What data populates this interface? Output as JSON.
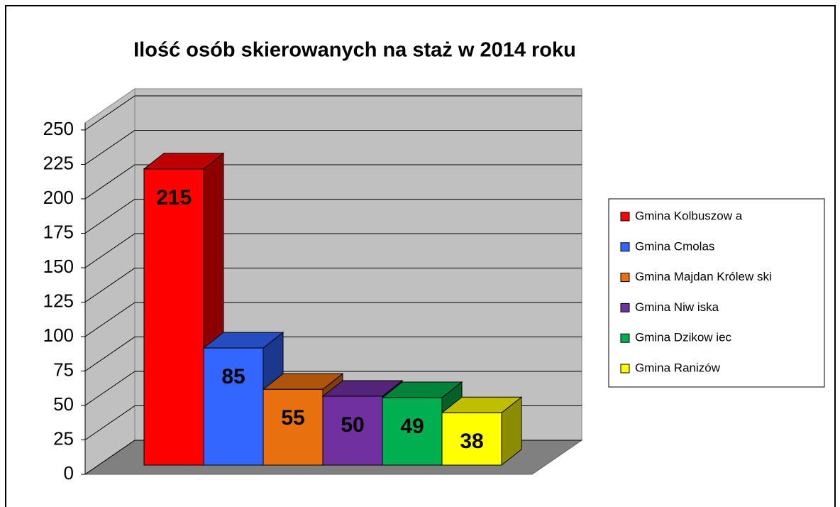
{
  "chart_data": {
    "type": "bar3d",
    "title": "Ilość osób skierowanych na staż w 2014 roku",
    "series": [
      {
        "name": "Gmina Kolbuszow a",
        "color": "#ff0000",
        "values": [
          215
        ]
      },
      {
        "name": "Gmina Cmolas",
        "color": "#3366ff",
        "values": [
          85
        ]
      },
      {
        "name": "Gmina Majdan Królew ski",
        "color": "#e8700f",
        "values": [
          55
        ]
      },
      {
        "name": "Gmina Niw iska",
        "color": "#7030a0",
        "values": [
          50
        ]
      },
      {
        "name": "Gmina Dzikow iec",
        "color": "#00b050",
        "values": [
          49
        ]
      },
      {
        "name": "Gmina Ranizów",
        "color": "#ffff00",
        "values": [
          38
        ]
      }
    ],
    "ylim": [
      0,
      250
    ],
    "yticks": [
      0,
      25,
      50,
      75,
      100,
      125,
      150,
      175,
      200,
      225,
      250
    ],
    "grid": true,
    "legend": "right"
  }
}
